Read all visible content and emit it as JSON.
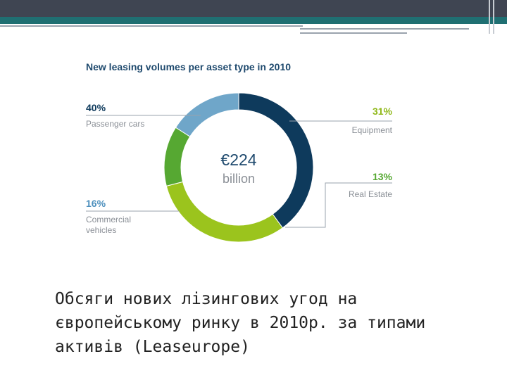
{
  "slide": {
    "colors": {
      "topbar": "#3f4552",
      "stripe": "#1f6f72"
    },
    "caption_lines": [
      "Обсяги нових лізингових угод на",
      "європейському ринку в 2010р. за типами",
      "активів (Leaseurope)"
    ]
  },
  "chart_data": {
    "type": "pie",
    "variant": "donut",
    "title": "New leasing volumes per asset type in 2010",
    "center_value": "€224",
    "center_unit": "billion",
    "slices": [
      {
        "label": "Passenger cars",
        "value": 40,
        "value_label": "40%",
        "color": "#0e3a5c",
        "label_color": "#0e3a5c"
      },
      {
        "label": "Equipment",
        "value": 31,
        "value_label": "31%",
        "color": "#9bc41d",
        "label_color": "#8fb818"
      },
      {
        "label": "Real Estate",
        "value": 13,
        "value_label": "13%",
        "color": "#56a832",
        "label_color": "#56a832"
      },
      {
        "label": "Commercial vehicles",
        "value": 16,
        "value_label": "16%",
        "color": "#6fa6c9",
        "label_color": "#4e90bd"
      }
    ],
    "legend": "labels around chart"
  }
}
